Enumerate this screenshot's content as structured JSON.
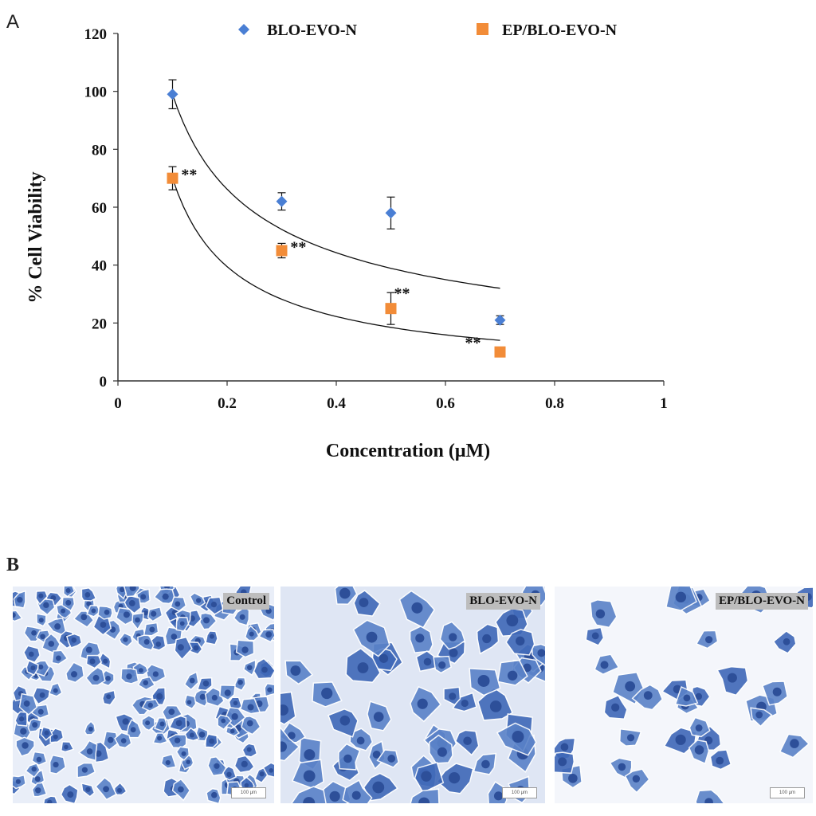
{
  "panels": {
    "a_label": "A",
    "b_label": "B"
  },
  "chart_data": {
    "type": "scatter",
    "xlabel": "Concentration  (μM)",
    "ylabel": "%  Cell Viability",
    "xlim": [
      0,
      1
    ],
    "ylim": [
      0,
      120
    ],
    "x_ticks": [
      "0",
      "0.2",
      "0.4",
      "0.6",
      "0.8",
      "1"
    ],
    "y_ticks": [
      "0",
      "20",
      "40",
      "60",
      "80",
      "100",
      "120"
    ],
    "legend_position": "top",
    "grid": false,
    "series": [
      {
        "name": "BLO-EVO-N",
        "marker": "diamond",
        "color": "#4a7fd4",
        "x": [
          0.1,
          0.3,
          0.5,
          0.7
        ],
        "y": [
          99,
          62,
          58,
          21
        ],
        "error": [
          5,
          3,
          5.5,
          1.5
        ],
        "trendline": {
          "type": "power",
          "x_range": [
            0.1,
            0.7
          ],
          "y_range": [
            99,
            32
          ]
        }
      },
      {
        "name": "EP/BLO-EVO-N",
        "marker": "square",
        "color": "#f28c38",
        "x": [
          0.1,
          0.3,
          0.5,
          0.7
        ],
        "y": [
          70,
          45,
          25,
          10
        ],
        "error": [
          4,
          2.5,
          5.5,
          0
        ],
        "trendline": {
          "type": "power",
          "x_range": [
            0.1,
            0.7
          ],
          "y_range": [
            70,
            14
          ]
        }
      }
    ],
    "annotations": [
      {
        "text": "**",
        "x": 0.11,
        "y": 70
      },
      {
        "text": "**",
        "x": 0.31,
        "y": 45
      },
      {
        "text": "**",
        "x": 0.5,
        "y": 29
      },
      {
        "text": "**",
        "x": 0.63,
        "y": 12
      }
    ]
  },
  "micrographs": [
    {
      "label": "Control",
      "density": "dense",
      "scale_bar": "100 μm"
    },
    {
      "label": "BLO-EVO-N",
      "density": "medium",
      "scale_bar": "100 μm"
    },
    {
      "label": "EP/BLO-EVO-N",
      "density": "sparse",
      "scale_bar": "100 μm"
    }
  ]
}
